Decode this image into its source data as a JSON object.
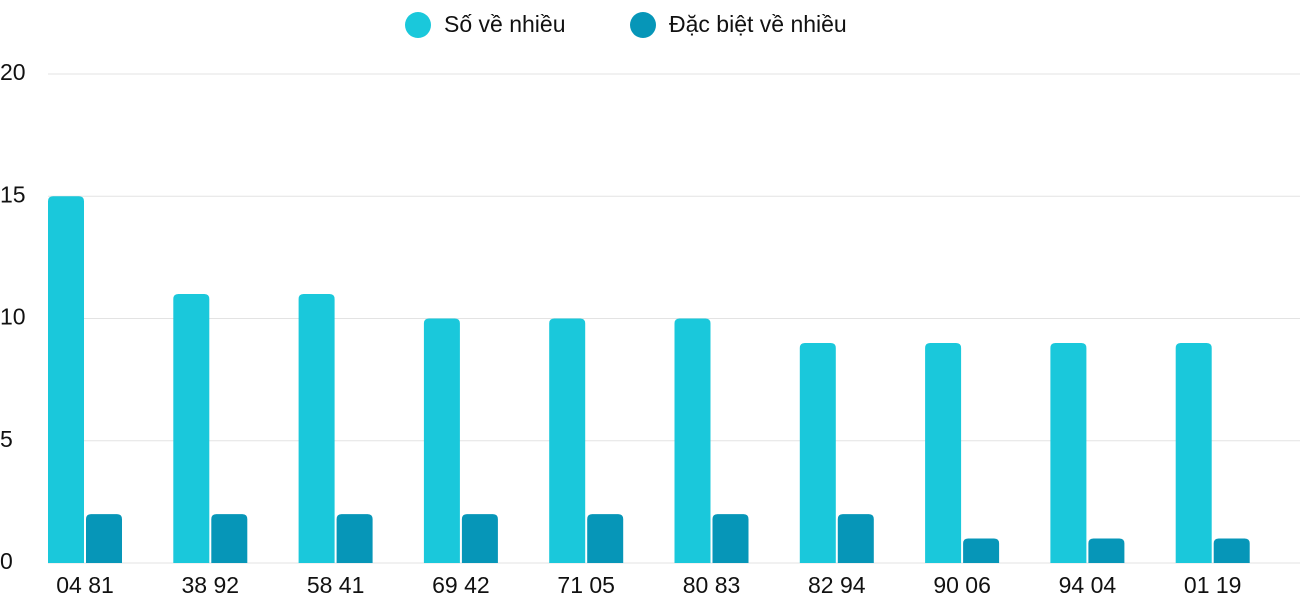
{
  "chart_data": {
    "type": "bar",
    "categories": [
      "04 81",
      "38 92",
      "58 41",
      "69 42",
      "71 05",
      "80 83",
      "82 94",
      "90 06",
      "94 04",
      "01 19"
    ],
    "series": [
      {
        "name": "Số về nhiều",
        "color": "#1ac8db",
        "values": [
          15,
          11,
          11,
          10,
          10,
          10,
          9,
          9,
          9,
          9
        ]
      },
      {
        "name": "Đặc biệt về nhiều",
        "color": "#0696b8",
        "values": [
          2,
          2,
          2,
          2,
          2,
          2,
          2,
          1,
          1,
          1
        ]
      }
    ],
    "ylim": [
      0,
      20
    ],
    "yticks": [
      0,
      5,
      10,
      15,
      20
    ],
    "grid": true
  }
}
